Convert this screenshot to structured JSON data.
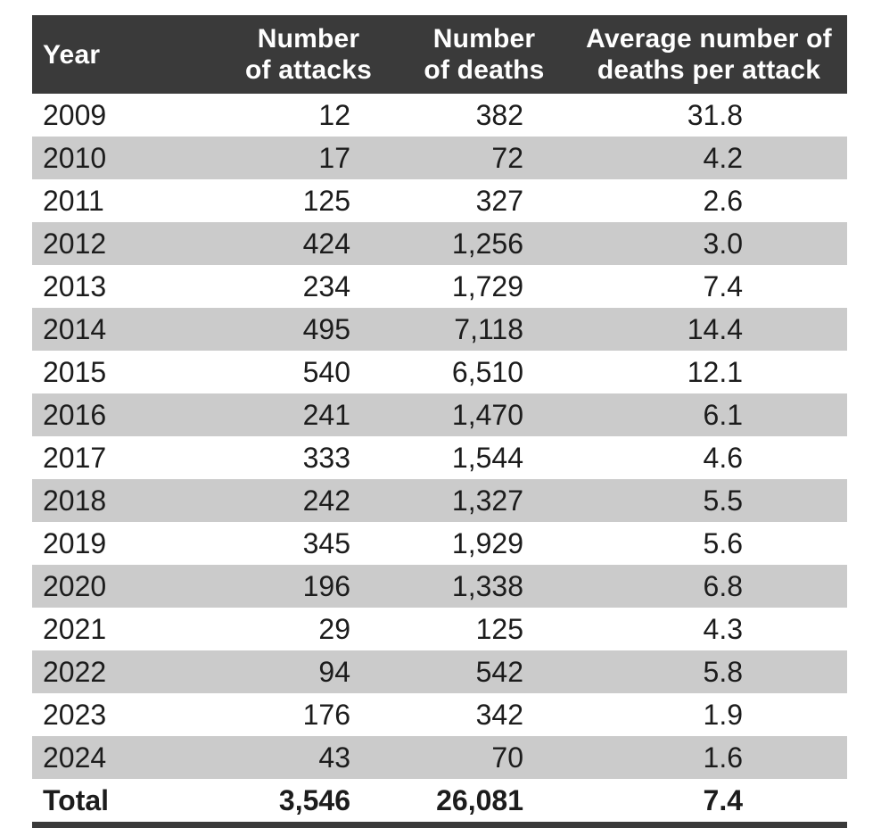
{
  "colors": {
    "header_bg": "#3A3A3A",
    "header_text": "#FFFFFF",
    "row_stripe": "#CBCBCB",
    "row_plain": "#FFFFFF",
    "text": "#1C1C1C"
  },
  "table": {
    "header": {
      "year": "Year",
      "attacks": [
        "Number",
        "of attacks"
      ],
      "deaths": [
        "Number",
        "of deaths"
      ],
      "avg": [
        "Average number of",
        "deaths per attack"
      ]
    },
    "rows": [
      [
        "2009",
        "12",
        "382",
        "31.8"
      ],
      [
        "2010",
        "17",
        "72",
        "4.2"
      ],
      [
        "2011",
        "125",
        "327",
        "2.6"
      ],
      [
        "2012",
        "424",
        "1,256",
        "3.0"
      ],
      [
        "2013",
        "234",
        "1,729",
        "7.4"
      ],
      [
        "2014",
        "495",
        "7,118",
        "14.4"
      ],
      [
        "2015",
        "540",
        "6,510",
        "12.1"
      ],
      [
        "2016",
        "241",
        "1,470",
        "6.1"
      ],
      [
        "2017",
        "333",
        "1,544",
        "4.6"
      ],
      [
        "2018",
        "242",
        "1,327",
        "5.5"
      ],
      [
        "2019",
        "345",
        "1,929",
        "5.6"
      ],
      [
        "2020",
        "196",
        "1,338",
        "6.8"
      ],
      [
        "2021",
        "29",
        "125",
        "4.3"
      ],
      [
        "2022",
        "94",
        "542",
        "5.8"
      ],
      [
        "2023",
        "176",
        "342",
        "1.9"
      ],
      [
        "2024",
        "43",
        "70",
        "1.6"
      ]
    ],
    "total": [
      "Total",
      "3,546",
      "26,081",
      "7.4"
    ]
  },
  "chart_data": {
    "type": "table",
    "title": "",
    "columns": [
      "Year",
      "Number of attacks",
      "Number of deaths",
      "Average number of deaths per attack"
    ],
    "rows": [
      [
        2009,
        12,
        382,
        31.8
      ],
      [
        2010,
        17,
        72,
        4.2
      ],
      [
        2011,
        125,
        327,
        2.6
      ],
      [
        2012,
        424,
        1256,
        3.0
      ],
      [
        2013,
        234,
        1729,
        7.4
      ],
      [
        2014,
        495,
        7118,
        14.4
      ],
      [
        2015,
        540,
        6510,
        12.1
      ],
      [
        2016,
        241,
        1470,
        6.1
      ],
      [
        2017,
        333,
        1544,
        4.6
      ],
      [
        2018,
        242,
        1327,
        5.5
      ],
      [
        2019,
        345,
        1929,
        5.6
      ],
      [
        2020,
        196,
        1338,
        6.8
      ],
      [
        2021,
        29,
        125,
        4.3
      ],
      [
        2022,
        94,
        542,
        5.8
      ],
      [
        2023,
        176,
        342,
        1.9
      ],
      [
        2024,
        43,
        70,
        1.6
      ]
    ],
    "total_row": [
      "Total",
      3546,
      26081,
      7.4
    ],
    "layout": {
      "striped": true,
      "first_data_row_background": "white",
      "header_style": "dark-bar-white-bold-text",
      "numeric_alignment": "right"
    }
  }
}
